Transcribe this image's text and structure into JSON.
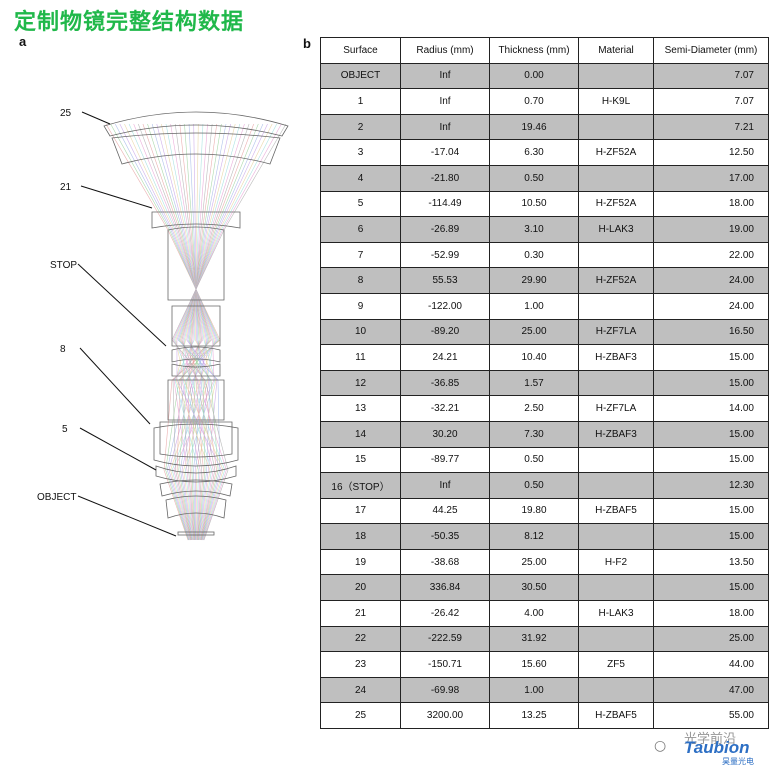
{
  "title": "定制物镜完整结构数据",
  "panels": {
    "a": "a",
    "b": "b"
  },
  "diagram": {
    "callouts": [
      "25",
      "21",
      "STOP",
      "8",
      "5",
      "OBJECT"
    ],
    "ray_colors": [
      "#e7a3a3",
      "#9fd39f",
      "#a3b8e7",
      "#c9a3e7",
      "#e7d29f",
      "#9fdede",
      "#e7a3d6",
      "#b0b0b0"
    ]
  },
  "table": {
    "headers": [
      "Surface",
      "Radius (mm)",
      "Thickness (mm)",
      "Material",
      "Semi-Diameter (mm)"
    ],
    "rows": [
      [
        "OBJECT",
        "Inf",
        "0.00",
        "",
        "7.07"
      ],
      [
        "1",
        "Inf",
        "0.70",
        "H-K9L",
        "7.07"
      ],
      [
        "2",
        "Inf",
        "19.46",
        "",
        "7.21"
      ],
      [
        "3",
        "-17.04",
        "6.30",
        "H-ZF52A",
        "12.50"
      ],
      [
        "4",
        "-21.80",
        "0.50",
        "",
        "17.00"
      ],
      [
        "5",
        "-114.49",
        "10.50",
        "H-ZF52A",
        "18.00"
      ],
      [
        "6",
        "-26.89",
        "3.10",
        "H-LAK3",
        "19.00"
      ],
      [
        "7",
        "-52.99",
        "0.30",
        "",
        "22.00"
      ],
      [
        "8",
        "55.53",
        "29.90",
        "H-ZF52A",
        "24.00"
      ],
      [
        "9",
        "-122.00",
        "1.00",
        "",
        "24.00"
      ],
      [
        "10",
        "-89.20",
        "25.00",
        "H-ZF7LA",
        "16.50"
      ],
      [
        "11",
        "24.21",
        "10.40",
        "H-ZBAF3",
        "15.00"
      ],
      [
        "12",
        "-36.85",
        "1.57",
        "",
        "15.00"
      ],
      [
        "13",
        "-32.21",
        "2.50",
        "H-ZF7LA",
        "14.00"
      ],
      [
        "14",
        "30.20",
        "7.30",
        "H-ZBAF3",
        "15.00"
      ],
      [
        "15",
        "-89.77",
        "0.50",
        "",
        "15.00"
      ],
      [
        "16（STOP）",
        "Inf",
        "0.50",
        "",
        "12.30"
      ],
      [
        "17",
        "44.25",
        "19.80",
        "H-ZBAF5",
        "15.00"
      ],
      [
        "18",
        "-50.35",
        "8.12",
        "",
        "15.00"
      ],
      [
        "19",
        "-38.68",
        "25.00",
        "H-F2",
        "13.50"
      ],
      [
        "20",
        "336.84",
        "30.50",
        "",
        "15.00"
      ],
      [
        "21",
        "-26.42",
        "4.00",
        "H-LAK3",
        "18.00"
      ],
      [
        "22",
        "-222.59",
        "31.92",
        "",
        "25.00"
      ],
      [
        "23",
        "-150.71",
        "15.60",
        "ZF5",
        "44.00"
      ],
      [
        "24",
        "-69.98",
        "1.00",
        "",
        "47.00"
      ],
      [
        "25",
        "3200.00",
        "13.25",
        "H-ZBAF5",
        "55.00"
      ]
    ]
  },
  "watermark": {
    "text_cn": "光学前沿",
    "logo": "Taubion",
    "sub": "昊量光电"
  }
}
